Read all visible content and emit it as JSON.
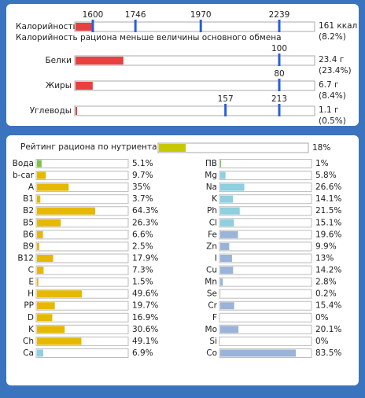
{
  "energy": {
    "label": "Калорийность",
    "markers": [
      1600,
      1746,
      1970,
      2239
    ],
    "amount": 161,
    "amount_label": "161 ккал",
    "percent": 8.2,
    "percent_label": "(8.2%)",
    "note": "Калорийность рациона меньше величины основного обмена"
  },
  "macros": [
    {
      "label": "Белки",
      "markers": [
        100
      ],
      "amount": 23.4,
      "amount_label": "23.4 г",
      "percent": 23.4,
      "percent_label": "(23.4%)"
    },
    {
      "label": "Жиры",
      "markers": [
        80
      ],
      "amount": 6.7,
      "amount_label": "6.7 г",
      "percent": 8.4,
      "percent_label": "(8.4%)"
    },
    {
      "label": "Углеводы",
      "markers": [
        157,
        213
      ],
      "amount": 1.1,
      "amount_label": "1.1 г",
      "percent": 0.5,
      "percent_label": "(0.5%)"
    }
  ],
  "rating": {
    "label": "Рейтинг рациона по нутриентам",
    "value": 18,
    "value_label": "18%",
    "color": "#c8c800"
  },
  "nutrients_left": [
    {
      "name": "Вода",
      "value": 5.1,
      "value_label": "5.1%",
      "color": "#7cc14a"
    },
    {
      "name": "b-car",
      "value": 9.7,
      "value_label": "9.7%",
      "color": "#e6b800"
    },
    {
      "name": "A",
      "value": 35,
      "value_label": "35%",
      "color": "#e6b800"
    },
    {
      "name": "B1",
      "value": 3.7,
      "value_label": "3.7%",
      "color": "#e6b800"
    },
    {
      "name": "B2",
      "value": 64.3,
      "value_label": "64.3%",
      "color": "#e6b800"
    },
    {
      "name": "B5",
      "value": 26.3,
      "value_label": "26.3%",
      "color": "#e6b800"
    },
    {
      "name": "B6",
      "value": 6.6,
      "value_label": "6.6%",
      "color": "#e6b800"
    },
    {
      "name": "B9",
      "value": 2.5,
      "value_label": "2.5%",
      "color": "#e6b800"
    },
    {
      "name": "B12",
      "value": 17.9,
      "value_label": "17.9%",
      "color": "#e6b800"
    },
    {
      "name": "C",
      "value": 7.3,
      "value_label": "7.3%",
      "color": "#e6b800"
    },
    {
      "name": "E",
      "value": 1.5,
      "value_label": "1.5%",
      "color": "#e6b800"
    },
    {
      "name": "H",
      "value": 49.6,
      "value_label": "49.6%",
      "color": "#e6b800"
    },
    {
      "name": "PP",
      "value": 19.7,
      "value_label": "19.7%",
      "color": "#e6b800"
    },
    {
      "name": "D",
      "value": 16.9,
      "value_label": "16.9%",
      "color": "#e6b800"
    },
    {
      "name": "K",
      "value": 30.6,
      "value_label": "30.6%",
      "color": "#e6b800"
    },
    {
      "name": "Ch",
      "value": 49.1,
      "value_label": "49.1%",
      "color": "#e6b800"
    },
    {
      "name": "Ca",
      "value": 6.9,
      "value_label": "6.9%",
      "color": "#8ecfe0"
    }
  ],
  "nutrients_right": [
    {
      "name": "ПВ",
      "value": 1,
      "value_label": "1%",
      "color": "#7cc14a"
    },
    {
      "name": "Mg",
      "value": 5.8,
      "value_label": "5.8%",
      "color": "#8ecfe0"
    },
    {
      "name": "Na",
      "value": 26.6,
      "value_label": "26.6%",
      "color": "#8ecfe0"
    },
    {
      "name": "K",
      "value": 14.1,
      "value_label": "14.1%",
      "color": "#8ecfe0"
    },
    {
      "name": "Ph",
      "value": 21.5,
      "value_label": "21.5%",
      "color": "#8ecfe0"
    },
    {
      "name": "Cl",
      "value": 15.1,
      "value_label": "15.1%",
      "color": "#8ecfe0"
    },
    {
      "name": "Fe",
      "value": 19.6,
      "value_label": "19.6%",
      "color": "#9ab3d8"
    },
    {
      "name": "Zn",
      "value": 9.9,
      "value_label": "9.9%",
      "color": "#9ab3d8"
    },
    {
      "name": "I",
      "value": 13,
      "value_label": "13%",
      "color": "#9ab3d8"
    },
    {
      "name": "Cu",
      "value": 14.2,
      "value_label": "14.2%",
      "color": "#9ab3d8"
    },
    {
      "name": "Mn",
      "value": 2.8,
      "value_label": "2.8%",
      "color": "#9ab3d8"
    },
    {
      "name": "Se",
      "value": 0.2,
      "value_label": "0.2%",
      "color": "#9ab3d8"
    },
    {
      "name": "Cr",
      "value": 15.4,
      "value_label": "15.4%",
      "color": "#9ab3d8"
    },
    {
      "name": "F",
      "value": 0,
      "value_label": "0%",
      "color": "#9ab3d8"
    },
    {
      "name": "Mo",
      "value": 20.1,
      "value_label": "20.1%",
      "color": "#9ab3d8"
    },
    {
      "name": "Si",
      "value": 0,
      "value_label": "0%",
      "color": "#9ab3d8"
    },
    {
      "name": "Co",
      "value": 83.5,
      "value_label": "83.5%",
      "color": "#9ab3d8"
    }
  ]
}
